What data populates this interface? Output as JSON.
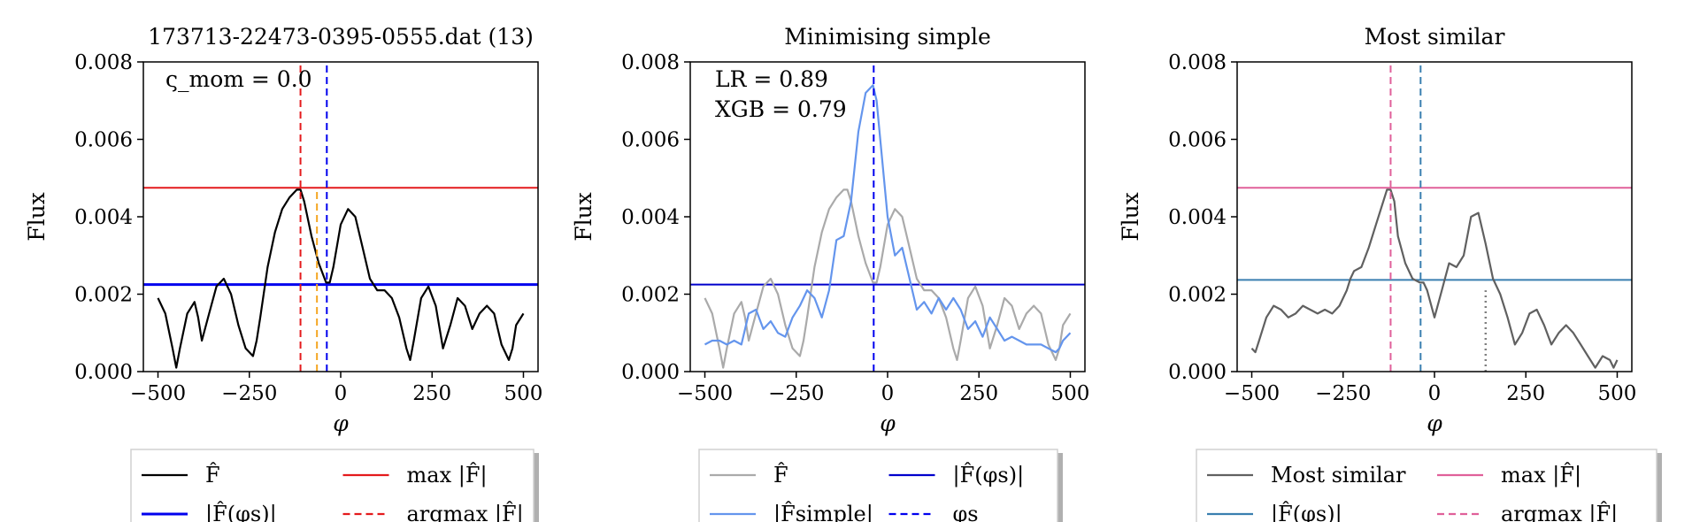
{
  "chart_data": [
    {
      "type": "line",
      "title": "173713-22473-0395-0555.dat (13)",
      "xlabel": "φ",
      "ylabel": "Flux",
      "xlim": [
        -540,
        540
      ],
      "ylim": [
        0,
        0.008
      ],
      "xticks": [
        -500,
        -250,
        0,
        250,
        500
      ],
      "xtick_labels": [
        "−500",
        "−250",
        "0",
        "250",
        "500"
      ],
      "yticks": [
        0,
        0.002,
        0.004,
        0.006,
        0.008
      ],
      "ytick_labels": [
        "0.000",
        "0.002",
        "0.004",
        "0.006",
        "0.008"
      ],
      "annotations": [
        "ς_mom = 0.0"
      ],
      "series": [
        {
          "name": "F̂",
          "color": "#000000",
          "style": "solid",
          "x": [
            -500,
            -480,
            -460,
            -450,
            -440,
            -420,
            -400,
            -390,
            -380,
            -360,
            -340,
            -320,
            -300,
            -280,
            -260,
            -240,
            -230,
            -220,
            -200,
            -180,
            -160,
            -140,
            -120,
            -110,
            -100,
            -80,
            -60,
            -40,
            -30,
            -20,
            0,
            20,
            40,
            60,
            80,
            100,
            120,
            140,
            160,
            180,
            190,
            200,
            220,
            240,
            260,
            280,
            300,
            320,
            340,
            360,
            380,
            400,
            420,
            440,
            460,
            470,
            480,
            500
          ],
          "y": [
            0.0019,
            0.0015,
            0.0006,
            0.0001,
            0.0006,
            0.0015,
            0.0018,
            0.0014,
            0.0008,
            0.0015,
            0.0022,
            0.0024,
            0.002,
            0.0012,
            0.0006,
            0.0004,
            0.0008,
            0.0014,
            0.0027,
            0.0036,
            0.0042,
            0.0045,
            0.0047,
            0.0047,
            0.0044,
            0.0035,
            0.0028,
            0.0023,
            0.0023,
            0.0027,
            0.0038,
            0.0042,
            0.004,
            0.0032,
            0.0024,
            0.0021,
            0.0021,
            0.0019,
            0.0014,
            0.0006,
            0.0003,
            0.0008,
            0.0019,
            0.0022,
            0.0017,
            0.0006,
            0.0012,
            0.0019,
            0.0017,
            0.0011,
            0.0015,
            0.0017,
            0.0015,
            0.0007,
            0.0003,
            0.0006,
            0.0012,
            0.0015
          ]
        }
      ],
      "hlines": [
        {
          "name": "max|F̂|",
          "y": 0.00475,
          "color": "#e41a1c",
          "style": "solid"
        },
        {
          "name": "|F̂(φs)|",
          "y": 0.00225,
          "color": "#0000ee",
          "style": "solid"
        }
      ],
      "vlines": [
        {
          "name": "argmax |F̂|",
          "x": -110,
          "color": "#e41a1c",
          "style": "dashed"
        },
        {
          "name": "φ_orange",
          "x": -65,
          "color": "#f5a623",
          "style": "dashed",
          "ymax": 0.0047
        },
        {
          "name": "φs",
          "x": -38,
          "color": "#0000ee",
          "style": "dashed"
        }
      ],
      "legend": [
        {
          "label": "F̂",
          "color": "#000000",
          "style": "solid"
        },
        {
          "label": "max |F̂|",
          "color": "#e41a1c",
          "style": "solid"
        },
        {
          "label": "|F̂(φs)|",
          "color": "#0000ee",
          "style": "solid",
          "width": 3
        },
        {
          "label": "argmax |F̂|",
          "color": "#e41a1c",
          "style": "dashed"
        }
      ]
    },
    {
      "type": "line",
      "title": "Minimising simple",
      "xlabel": "φ",
      "ylabel": "Flux",
      "xlim": [
        -540,
        540
      ],
      "ylim": [
        0,
        0.008
      ],
      "xticks": [
        -500,
        -250,
        0,
        250,
        500
      ],
      "xtick_labels": [
        "−500",
        "−250",
        "0",
        "250",
        "500"
      ],
      "yticks": [
        0,
        0.002,
        0.004,
        0.006,
        0.008
      ],
      "ytick_labels": [
        "0.000",
        "0.002",
        "0.004",
        "0.006",
        "0.008"
      ],
      "annotations": [
        "LR = 0.89",
        "XGB = 0.79"
      ],
      "series": [
        {
          "name": "F̂",
          "color": "#aaaaaa",
          "style": "solid",
          "x": [
            -500,
            -480,
            -460,
            -450,
            -440,
            -420,
            -400,
            -390,
            -380,
            -360,
            -340,
            -320,
            -300,
            -280,
            -260,
            -240,
            -230,
            -220,
            -200,
            -180,
            -160,
            -140,
            -120,
            -110,
            -100,
            -80,
            -60,
            -40,
            -30,
            -20,
            0,
            20,
            40,
            60,
            80,
            100,
            120,
            140,
            160,
            180,
            190,
            200,
            220,
            240,
            260,
            280,
            300,
            320,
            340,
            360,
            380,
            400,
            420,
            440,
            460,
            470,
            480,
            500
          ],
          "y": [
            0.0019,
            0.0015,
            0.0006,
            0.0001,
            0.0006,
            0.0015,
            0.0018,
            0.0014,
            0.0008,
            0.0015,
            0.0022,
            0.0024,
            0.002,
            0.0012,
            0.0006,
            0.0004,
            0.0008,
            0.0014,
            0.0027,
            0.0036,
            0.0042,
            0.0045,
            0.0047,
            0.0047,
            0.0044,
            0.0035,
            0.0028,
            0.0023,
            0.0023,
            0.0027,
            0.0038,
            0.0042,
            0.004,
            0.0032,
            0.0024,
            0.0021,
            0.0021,
            0.0019,
            0.0014,
            0.0006,
            0.0003,
            0.0008,
            0.0019,
            0.0022,
            0.0017,
            0.0006,
            0.0012,
            0.0019,
            0.0017,
            0.0011,
            0.0015,
            0.0017,
            0.0015,
            0.0007,
            0.0003,
            0.0006,
            0.0012,
            0.0015
          ]
        },
        {
          "name": "|F̂simple|",
          "color": "#6495ed",
          "style": "solid",
          "x": [
            -500,
            -480,
            -460,
            -440,
            -420,
            -400,
            -380,
            -360,
            -340,
            -320,
            -300,
            -280,
            -260,
            -240,
            -220,
            -200,
            -180,
            -160,
            -140,
            -120,
            -100,
            -80,
            -60,
            -40,
            -30,
            -20,
            0,
            20,
            40,
            60,
            80,
            100,
            120,
            140,
            160,
            180,
            200,
            220,
            240,
            260,
            280,
            300,
            320,
            340,
            360,
            380,
            400,
            420,
            440,
            460,
            470,
            480,
            500
          ],
          "y": [
            0.0007,
            0.0008,
            0.0008,
            0.0007,
            0.0008,
            0.0007,
            0.0015,
            0.0016,
            0.0011,
            0.0013,
            0.001,
            0.0009,
            0.0014,
            0.0017,
            0.0021,
            0.0019,
            0.0014,
            0.0021,
            0.0034,
            0.0035,
            0.0044,
            0.0062,
            0.0072,
            0.0074,
            0.007,
            0.006,
            0.004,
            0.003,
            0.0032,
            0.0024,
            0.0016,
            0.0018,
            0.0015,
            0.0019,
            0.0016,
            0.0019,
            0.0016,
            0.0011,
            0.0013,
            0.0009,
            0.0014,
            0.0011,
            0.0008,
            0.0009,
            0.0008,
            0.0007,
            0.0007,
            0.0007,
            0.0006,
            0.0005,
            0.0006,
            0.0008,
            0.001
          ]
        }
      ],
      "hlines": [
        {
          "name": "|F̂(φs)|",
          "y": 0.00225,
          "color": "#0000cc",
          "style": "solid"
        }
      ],
      "vlines": [
        {
          "name": "φs",
          "x": -38,
          "color": "#0000ee",
          "style": "dashed"
        }
      ],
      "legend": [
        {
          "label": "F̂",
          "color": "#aaaaaa",
          "style": "solid"
        },
        {
          "label": "|F̂(φs)|",
          "color": "#0000cc",
          "style": "solid"
        },
        {
          "label": "|F̂simple|",
          "color": "#6495ed",
          "style": "solid"
        },
        {
          "label": "φs",
          "color": "#0000ee",
          "style": "dashed"
        }
      ]
    },
    {
      "type": "line",
      "title": "Most similar",
      "xlabel": "φ",
      "ylabel": "Flux",
      "xlim": [
        -540,
        540
      ],
      "ylim": [
        0,
        0.008
      ],
      "xticks": [
        -500,
        -250,
        0,
        250,
        500
      ],
      "xtick_labels": [
        "−500",
        "−250",
        "0",
        "250",
        "500"
      ],
      "yticks": [
        0,
        0.002,
        0.004,
        0.006,
        0.008
      ],
      "ytick_labels": [
        "0.000",
        "0.002",
        "0.004",
        "0.006",
        "0.008"
      ],
      "annotations": [],
      "series": [
        {
          "name": "Most similar",
          "color": "#606060",
          "style": "solid",
          "x": [
            -500,
            -490,
            -480,
            -460,
            -440,
            -420,
            -400,
            -380,
            -360,
            -340,
            -320,
            -300,
            -280,
            -260,
            -240,
            -230,
            -220,
            -200,
            -180,
            -160,
            -140,
            -130,
            -120,
            -110,
            -100,
            -80,
            -60,
            -40,
            -30,
            -20,
            0,
            20,
            40,
            60,
            80,
            100,
            120,
            140,
            160,
            180,
            200,
            220,
            240,
            260,
            280,
            300,
            320,
            340,
            360,
            380,
            400,
            420,
            440,
            460,
            480,
            490,
            500
          ],
          "y": [
            0.0006,
            0.0005,
            0.0008,
            0.0014,
            0.0017,
            0.0016,
            0.0014,
            0.0015,
            0.0017,
            0.0016,
            0.0015,
            0.0016,
            0.0015,
            0.0017,
            0.0021,
            0.0024,
            0.0026,
            0.0027,
            0.0032,
            0.0038,
            0.0044,
            0.0047,
            0.0047,
            0.0044,
            0.0035,
            0.0028,
            0.0024,
            0.0023,
            0.0023,
            0.0021,
            0.0014,
            0.0021,
            0.0028,
            0.0027,
            0.003,
            0.004,
            0.0041,
            0.0033,
            0.0024,
            0.002,
            0.0014,
            0.0007,
            0.001,
            0.0015,
            0.0016,
            0.0012,
            0.0007,
            0.001,
            0.0012,
            0.001,
            0.0007,
            0.0004,
            0.0001,
            0.0004,
            0.0003,
            0.0001,
            0.0003
          ]
        }
      ],
      "hlines": [
        {
          "name": "max|F̂|",
          "y": 0.00475,
          "color": "#e0609a",
          "style": "solid"
        },
        {
          "name": "|F̂(φs)|",
          "y": 0.00237,
          "color": "#3a7fb0",
          "style": "solid"
        }
      ],
      "vlines": [
        {
          "name": "argmax |F̂|",
          "x": -120,
          "color": "#e0609a",
          "style": "dashed"
        },
        {
          "name": "φs",
          "x": -38,
          "color": "#3a7fb0",
          "style": "dashed"
        },
        {
          "name": "φ_grey",
          "x": 140,
          "color": "#808080",
          "style": "dotted",
          "ymax": 0.0021
        }
      ],
      "legend": [
        {
          "label": "Most similar",
          "color": "#606060",
          "style": "solid"
        },
        {
          "label": "max |F̂|",
          "color": "#e0609a",
          "style": "solid"
        },
        {
          "label": "|F̂(φs)|",
          "color": "#3a7fb0",
          "style": "solid"
        },
        {
          "label": "argmax |F̂|",
          "color": "#e0609a",
          "style": "dashed"
        }
      ]
    }
  ]
}
